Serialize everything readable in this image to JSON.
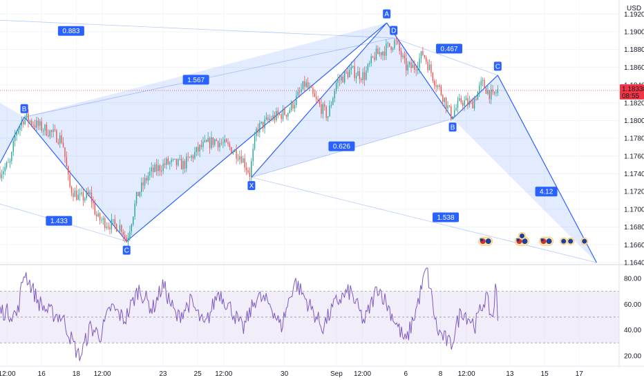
{
  "chart_data": [
    {
      "type": "candlestick",
      "currency": "USD",
      "price_axis_ticks": [
        "1.19200",
        "1.19000",
        "1.18800",
        "1.18600",
        "1.18400",
        "1.18200",
        "1.18000",
        "1.17800",
        "1.17600",
        "1.17400",
        "1.17200",
        "1.17000",
        "1.16800",
        "1.16600",
        "1.16400"
      ],
      "ylim": [
        1.164,
        1.1928
      ],
      "current_price": {
        "price": "1.18338",
        "countdown": "08:55",
        "value": 1.18338,
        "color": "#f23645"
      },
      "x_labels": [
        "12:00",
        "16",
        "18",
        "12:00",
        "23",
        "25",
        "12:00",
        "30",
        "Sep",
        "12:00",
        "6",
        "8",
        "12:00",
        "13",
        "15",
        "17"
      ],
      "x_label_days": [
        14.0,
        16.0,
        18.0,
        19.5,
        23.0,
        25.0,
        26.5,
        30.0,
        33.0,
        34.5,
        37.0,
        39.0,
        40.5,
        43.0,
        45.0,
        47.0
      ],
      "xlim": [
        13.6,
        49.3
      ],
      "colors": {
        "up": "#26a69a",
        "down": "#ef5350",
        "pattern_line": "#2962ff",
        "pattern_fill": "#2962ff",
        "label_bg": "#2962ff"
      },
      "price_path": [
        [
          13.6,
          1.1742
        ],
        [
          14.2,
          1.1752
        ],
        [
          14.5,
          1.1786
        ],
        [
          15.0,
          1.1804
        ],
        [
          15.6,
          1.1796
        ],
        [
          16.4,
          1.1788
        ],
        [
          17.2,
          1.1778
        ],
        [
          17.6,
          1.1725
        ],
        [
          18.2,
          1.1712
        ],
        [
          18.8,
          1.1716
        ],
        [
          19.2,
          1.169
        ],
        [
          19.8,
          1.1684
        ],
        [
          20.6,
          1.168
        ],
        [
          20.9,
          1.1664
        ],
        [
          21.5,
          1.1715
        ],
        [
          22.2,
          1.174
        ],
        [
          23.2,
          1.1752
        ],
        [
          24.2,
          1.175
        ],
        [
          25.2,
          1.177
        ],
        [
          26.0,
          1.1778
        ],
        [
          26.8,
          1.177
        ],
        [
          27.5,
          1.176
        ],
        [
          28.0,
          1.174
        ],
        [
          28.4,
          1.179
        ],
        [
          29.2,
          1.1802
        ],
        [
          30.2,
          1.181
        ],
        [
          30.8,
          1.1828
        ],
        [
          31.2,
          1.1842
        ],
        [
          31.8,
          1.1822
        ],
        [
          32.5,
          1.1805
        ],
        [
          33.0,
          1.1843
        ],
        [
          33.8,
          1.1856
        ],
        [
          34.6,
          1.185
        ],
        [
          35.2,
          1.1873
        ],
        [
          35.8,
          1.188
        ],
        [
          36.4,
          1.1889
        ],
        [
          37.0,
          1.186
        ],
        [
          37.5,
          1.186
        ],
        [
          38.0,
          1.1876
        ],
        [
          38.6,
          1.1848
        ],
        [
          39.2,
          1.1825
        ],
        [
          39.6,
          1.1806
        ],
        [
          40.2,
          1.1822
        ],
        [
          40.8,
          1.1818
        ],
        [
          41.4,
          1.1842
        ],
        [
          42.0,
          1.1826
        ],
        [
          42.3,
          1.1834
        ]
      ],
      "harmonic_points": [
        {
          "label": "B",
          "x": 15.0,
          "y": 1.1804
        },
        {
          "label": "C",
          "x": 20.9,
          "y": 1.1664
        },
        {
          "label": "X",
          "x": 28.1,
          "y": 1.1736
        },
        {
          "label": "A",
          "x": 35.9,
          "y": 1.191
        },
        {
          "label": "D",
          "x": 36.3,
          "y": 1.1893
        },
        {
          "label": "B",
          "x": 39.7,
          "y": 1.1802
        },
        {
          "label": "C",
          "x": 42.3,
          "y": 1.1851
        }
      ],
      "pattern_ratios": [
        {
          "label": "0.883",
          "x": 17.7,
          "y": 1.1901
        },
        {
          "label": "1.567",
          "x": 24.9,
          "y": 1.1846
        },
        {
          "label": "1.433",
          "x": 17.0,
          "y": 1.1687
        },
        {
          "label": "0.467",
          "x": 39.5,
          "y": 1.1881
        },
        {
          "label": "0.626",
          "x": 33.3,
          "y": 1.1771
        },
        {
          "label": "4.12",
          "x": 45.1,
          "y": 1.172
        },
        {
          "label": "1.538",
          "x": 39.3,
          "y": 1.1691
        }
      ],
      "projection_target": {
        "x": 48.0,
        "y": 1.164
      },
      "event_icons": [
        {
          "x": 41.6,
          "y": 1.1664,
          "kind": "flag-pair"
        },
        {
          "x": 43.7,
          "y": 1.1664,
          "kind": "flag-pair"
        },
        {
          "x": 43.7,
          "y": 1.167,
          "kind": "event"
        },
        {
          "x": 45.1,
          "y": 1.1664,
          "kind": "flag-pair"
        },
        {
          "x": 46.1,
          "y": 1.1664,
          "kind": "event"
        },
        {
          "x": 46.5,
          "y": 1.1664,
          "kind": "event"
        },
        {
          "x": 47.3,
          "y": 1.1664,
          "kind": "event"
        }
      ]
    },
    {
      "type": "line",
      "indicator": "RSI",
      "y_axis_ticks": [
        "80.00",
        "60.00",
        "40.00",
        "20.00"
      ],
      "ylim": [
        13.0,
        88.0
      ],
      "bands": {
        "upper": 70,
        "middle": 50,
        "lower": 30
      },
      "colors": {
        "line": "#7e57c2",
        "band_fill": "#7e57c2"
      },
      "series_keypoints": [
        [
          13.6,
          55
        ],
        [
          14.6,
          52
        ],
        [
          15.0,
          86
        ],
        [
          15.8,
          62
        ],
        [
          16.4,
          54
        ],
        [
          17.2,
          50
        ],
        [
          17.8,
          30
        ],
        [
          18.2,
          18
        ],
        [
          18.8,
          42
        ],
        [
          19.4,
          36
        ],
        [
          20.0,
          58
        ],
        [
          20.8,
          48
        ],
        [
          21.6,
          72
        ],
        [
          22.4,
          56
        ],
        [
          23.0,
          75
        ],
        [
          23.8,
          49
        ],
        [
          24.6,
          62
        ],
        [
          25.4,
          42
        ],
        [
          26.2,
          70
        ],
        [
          27.0,
          55
        ],
        [
          27.6,
          40
        ],
        [
          28.4,
          66
        ],
        [
          29.2,
          60
        ],
        [
          29.8,
          42
        ],
        [
          30.6,
          78
        ],
        [
          31.4,
          60
        ],
        [
          32.2,
          42
        ],
        [
          33.0,
          62
        ],
        [
          33.8,
          70
        ],
        [
          34.6,
          46
        ],
        [
          35.4,
          74
        ],
        [
          36.2,
          52
        ],
        [
          37.0,
          30
        ],
        [
          37.6,
          56
        ],
        [
          38.2,
          88
        ],
        [
          38.8,
          40
        ],
        [
          39.6,
          28
        ],
        [
          40.2,
          56
        ],
        [
          41.0,
          44
        ],
        [
          41.6,
          66
        ],
        [
          42.0,
          48
        ],
        [
          42.2,
          77
        ],
        [
          42.3,
          47
        ]
      ]
    }
  ]
}
